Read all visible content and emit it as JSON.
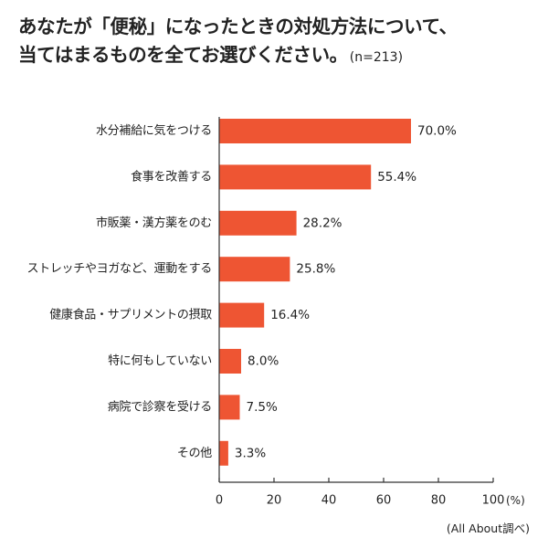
{
  "title": {
    "line1": "あなたが「便秘」になったときの対処方法について、",
    "line2": "当てはまるものを全てお選びください。",
    "sample": "(n=213)"
  },
  "source": "(All About調べ)",
  "colors": {
    "bar": "#ee5533",
    "axis": "#333333",
    "text": "#222222"
  },
  "chart_data": {
    "type": "bar",
    "orientation": "horizontal",
    "categories": [
      "水分補給に気をつける",
      "食事を改善する",
      "市販薬・漢方薬をのむ",
      "ストレッチやヨガなど、運動をする",
      "健康食品・サプリメントの摂取",
      "特に何もしていない",
      "病院で診察を受ける",
      "その他"
    ],
    "values": [
      70.0,
      55.4,
      28.2,
      25.8,
      16.4,
      8.0,
      7.5,
      3.3
    ],
    "value_labels": [
      "70.0%",
      "55.4%",
      "28.2%",
      "25.8%",
      "16.4%",
      "8.0%",
      "7.5%",
      "3.3%"
    ],
    "xlim": [
      0,
      100
    ],
    "xticks": [
      0,
      20,
      40,
      60,
      80,
      100
    ],
    "xunit": "(%)",
    "grid": false
  }
}
